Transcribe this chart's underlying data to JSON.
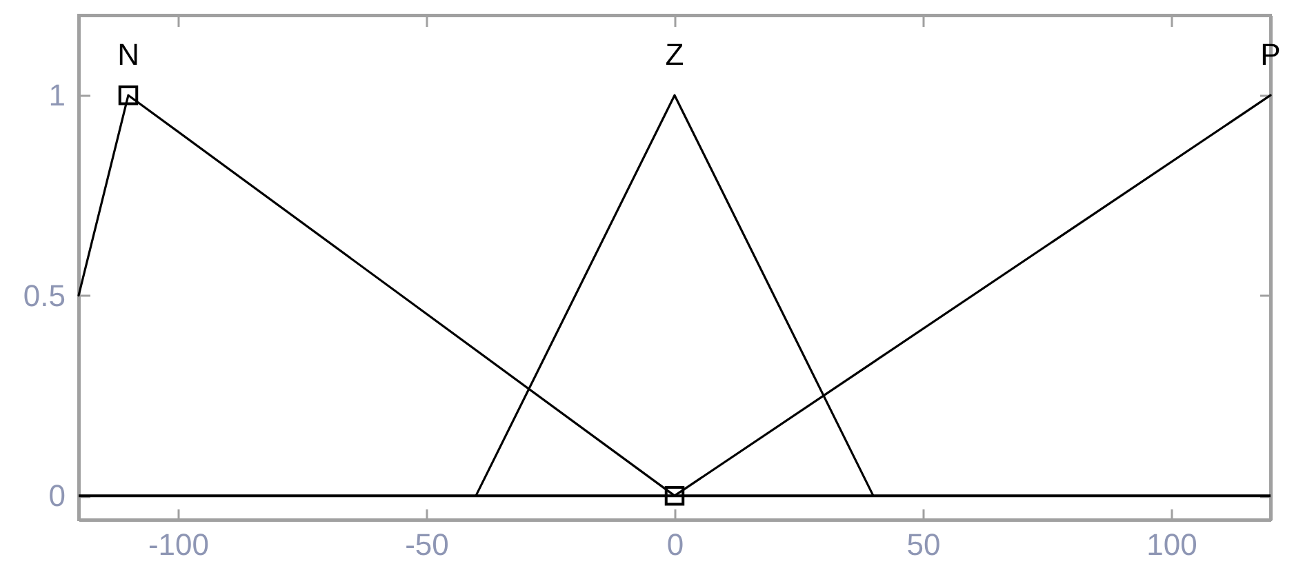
{
  "chart_data": {
    "type": "line",
    "series": [
      {
        "name": "N",
        "color": "#000000",
        "x": [
          -120,
          -110,
          0
        ],
        "values": [
          0.5,
          1,
          0
        ]
      },
      {
        "name": "Z",
        "color": "#000000",
        "x": [
          -40,
          0,
          40
        ],
        "values": [
          0,
          1,
          0
        ]
      },
      {
        "name": "P",
        "color": "#000000",
        "x": [
          0,
          120
        ],
        "values": [
          0,
          1
        ]
      },
      {
        "type": "scatter",
        "color": "#000000",
        "marker": "square",
        "x": [
          -110,
          0
        ],
        "values": [
          1,
          0
        ]
      }
    ],
    "ref_lines": [
      {
        "axis": "y",
        "value": 0,
        "color": "#000000"
      }
    ],
    "xlim": [
      -120,
      120
    ],
    "ylim": [
      -0.06,
      1.2
    ],
    "xticks": [
      -100,
      -50,
      0,
      50,
      100
    ],
    "yticks": [
      0,
      0.5,
      1
    ]
  }
}
